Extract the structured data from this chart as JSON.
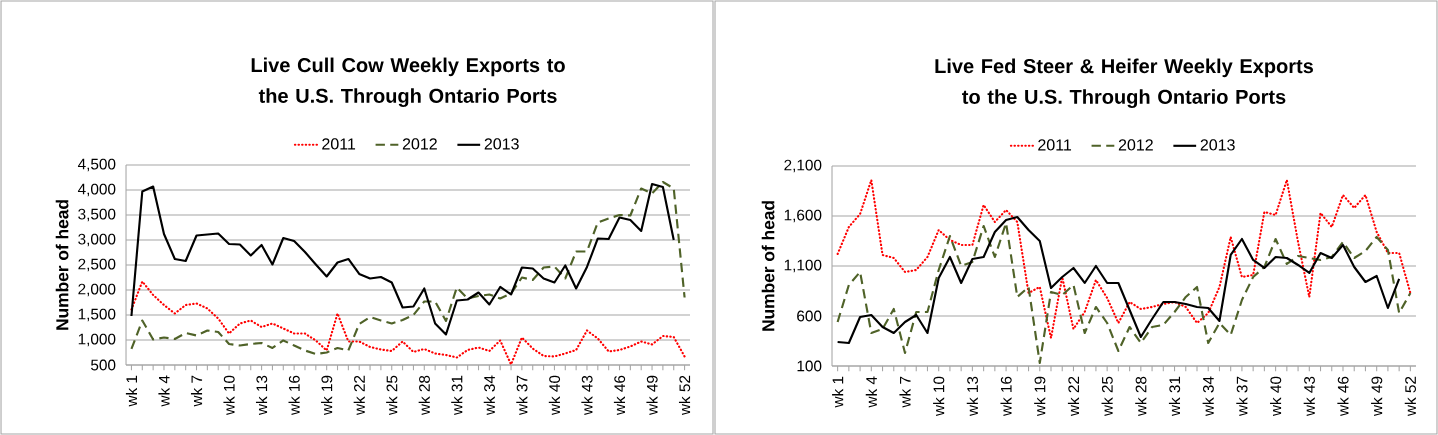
{
  "chart_data": [
    {
      "type": "line",
      "title": "Live Cull Cow Weekly Exports to the U.S. Through Ontario Ports",
      "ylabel": "Number of head",
      "categories": [
        "wk 1",
        null,
        null,
        "wk 4",
        null,
        null,
        "wk 7",
        null,
        null,
        "wk 10",
        null,
        null,
        "wk 13",
        null,
        null,
        "wk 16",
        null,
        null,
        "wk 19",
        null,
        null,
        "wk 22",
        null,
        null,
        "wk 25",
        null,
        null,
        "wk 28",
        null,
        null,
        "wk 31",
        null,
        null,
        "wk 34",
        null,
        null,
        "wk 37",
        null,
        null,
        "wk 40",
        null,
        null,
        "wk 43",
        null,
        null,
        "wk 46",
        null,
        null,
        "wk 49",
        null,
        null,
        "wk 52"
      ],
      "ylim": [
        500,
        4500
      ],
      "yticks": [
        500,
        {
          "value": 1000,
          "label": "1,000"
        },
        {
          "value": 1500,
          "label": "1,500"
        },
        {
          "value": 2000,
          "label": "2,000"
        },
        {
          "value": 2500,
          "label": "2,500"
        },
        {
          "value": 3000,
          "label": "3,000"
        },
        {
          "value": 3500,
          "label": "3,500"
        },
        {
          "value": 4000,
          "label": "4,000"
        },
        {
          "value": 4500,
          "label": "4,500"
        }
      ],
      "grid": "y",
      "legend": "top",
      "series": [
        {
          "name": "2011",
          "color": "#ff0000",
          "line_style": "dotted",
          "values": [
            1610,
            2170,
            1900,
            1700,
            1530,
            1700,
            1730,
            1630,
            1430,
            1130,
            1330,
            1390,
            1260,
            1330,
            1230,
            1130,
            1130,
            990,
            790,
            1530,
            970,
            970,
            860,
            810,
            780,
            970,
            760,
            820,
            730,
            700,
            650,
            800,
            850,
            780,
            990,
            510,
            1050,
            830,
            680,
            670,
            730,
            800,
            1190,
            1030,
            770,
            800,
            870,
            970,
            910,
            1080,
            1060,
            670
          ]
        },
        {
          "name": "2012",
          "color": "#4f6228",
          "line_style": "dashed",
          "values": [
            820,
            1390,
            1010,
            1050,
            1020,
            1140,
            1090,
            1190,
            1160,
            920,
            890,
            920,
            940,
            840,
            990,
            890,
            790,
            720,
            750,
            840,
            790,
            1320,
            1460,
            1390,
            1330,
            1400,
            1500,
            1770,
            1770,
            1380,
            2050,
            1830,
            1880,
            1910,
            1830,
            1930,
            2250,
            2200,
            2450,
            2470,
            2230,
            2770,
            2770,
            3350,
            3430,
            3500,
            3490,
            4030,
            3930,
            4160,
            4030,
            1850
          ]
        },
        {
          "name": "2013",
          "color": "#000000",
          "line_style": "solid",
          "values": [
            1480,
            3970,
            4070,
            3120,
            2620,
            2580,
            3090,
            3110,
            3130,
            2920,
            2910,
            2690,
            2900,
            2510,
            3040,
            2980,
            2760,
            2510,
            2270,
            2550,
            2620,
            2320,
            2230,
            2260,
            2150,
            1650,
            1670,
            2030,
            1330,
            1110,
            1790,
            1810,
            1950,
            1710,
            2060,
            1910,
            2450,
            2430,
            2230,
            2150,
            2490,
            2030,
            2460,
            3030,
            3020,
            3450,
            3400,
            3180,
            4120,
            4060,
            3000,
            null
          ]
        }
      ]
    },
    {
      "type": "line",
      "title": "Live Fed Steer & Heifer Weekly Exports to the U.S. Through Ontario Ports",
      "ylabel": "Number of head",
      "categories": [
        "wk 1",
        null,
        null,
        "wk 4",
        null,
        null,
        "wk 7",
        null,
        null,
        "wk 10",
        null,
        null,
        "wk 13",
        null,
        null,
        "wk 16",
        null,
        null,
        "wk 19",
        null,
        null,
        "wk 22",
        null,
        null,
        "wk 25",
        null,
        null,
        "wk 28",
        null,
        null,
        "wk 31",
        null,
        null,
        "wk 34",
        null,
        null,
        "wk 37",
        null,
        null,
        "wk 40",
        null,
        null,
        "wk 43",
        null,
        null,
        "wk 46",
        null,
        null,
        "wk 49",
        null,
        null,
        "wk 52"
      ],
      "ylim": [
        100,
        2100
      ],
      "yticks": [
        100,
        600,
        {
          "value": 1100,
          "label": "1,100"
        },
        {
          "value": 1600,
          "label": "1,600"
        },
        {
          "value": 2100,
          "label": "2,100"
        }
      ],
      "grid": "y",
      "legend": "top",
      "series": [
        {
          "name": "2011",
          "color": "#ff0000",
          "line_style": "dotted",
          "values": [
            1220,
            1490,
            1620,
            1960,
            1210,
            1180,
            1040,
            1060,
            1190,
            1460,
            1360,
            1310,
            1310,
            1710,
            1540,
            1660,
            1540,
            830,
            890,
            380,
            990,
            470,
            640,
            960,
            780,
            530,
            740,
            670,
            690,
            720,
            740,
            690,
            530,
            630,
            890,
            1390,
            990,
            1010,
            1640,
            1610,
            1960,
            1340,
            790,
            1630,
            1490,
            1810,
            1680,
            1810,
            1440,
            1230,
            1230,
            830
          ]
        },
        {
          "name": "2012",
          "color": "#4f6228",
          "line_style": "dashed",
          "values": [
            540,
            910,
            1040,
            430,
            470,
            670,
            230,
            640,
            640,
            1060,
            1400,
            1100,
            1140,
            1500,
            1190,
            1530,
            790,
            890,
            130,
            840,
            810,
            910,
            430,
            690,
            530,
            250,
            490,
            330,
            490,
            510,
            640,
            790,
            890,
            330,
            530,
            410,
            760,
            990,
            1090,
            1370,
            1120,
            1200,
            1180,
            1160,
            1190,
            1340,
            1180,
            1250,
            1390,
            1260,
            630,
            830
          ]
        },
        {
          "name": "2013",
          "color": "#000000",
          "line_style": "solid",
          "values": [
            340,
            330,
            590,
            610,
            490,
            430,
            540,
            610,
            430,
            980,
            1190,
            930,
            1170,
            1190,
            1440,
            1560,
            1590,
            1460,
            1350,
            880,
            990,
            1080,
            930,
            1100,
            930,
            930,
            660,
            390,
            570,
            740,
            740,
            720,
            690,
            680,
            550,
            1210,
            1370,
            1160,
            1080,
            1190,
            1180,
            1110,
            1030,
            1230,
            1180,
            1310,
            1090,
            940,
            1000,
            680,
            970,
            null
          ]
        }
      ]
    }
  ]
}
